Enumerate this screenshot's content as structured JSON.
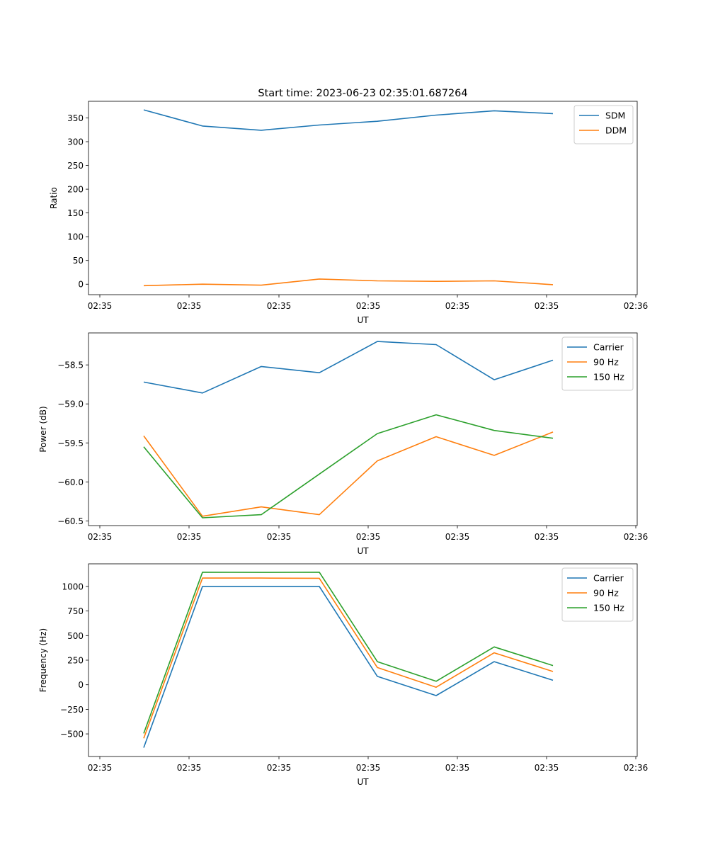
{
  "title": "Start time: 2023-06-23 02:35:01.687264",
  "colors": {
    "blue": "#1f77b4",
    "orange": "#ff7f0e",
    "green": "#2ca02c"
  },
  "chart_data": [
    {
      "type": "line",
      "xlabel": "UT",
      "ylabel": "Ratio",
      "x_tick_labels": [
        "02:35",
        "02:35",
        "02:35",
        "02:35",
        "02:35",
        "02:35",
        "02:36"
      ],
      "ylim": [
        -22,
        385
      ],
      "y_ticks": [
        0,
        50,
        100,
        150,
        200,
        250,
        300,
        350
      ],
      "legend": "top-right",
      "series": [
        {
          "name": "SDM",
          "color": "#1f77b4",
          "values": [
            367,
            333,
            324,
            335,
            343,
            356,
            365,
            359
          ]
        },
        {
          "name": "DDM",
          "color": "#ff7f0e",
          "values": [
            -3,
            0,
            -2,
            11,
            7,
            6,
            7,
            -1
          ]
        }
      ]
    },
    {
      "type": "line",
      "xlabel": "UT",
      "ylabel": "Power (dB)",
      "x_tick_labels": [
        "02:35",
        "02:35",
        "02:35",
        "02:35",
        "02:35",
        "02:35",
        "02:36"
      ],
      "ylim": [
        -60.56,
        -58.09
      ],
      "y_ticks": [
        -60.5,
        -60.0,
        -59.5,
        -59.0,
        -58.5
      ],
      "y_tick_labels": [
        "−60.5",
        "−60.0",
        "−59.5",
        "−59.0",
        "−58.5"
      ],
      "legend": "top-right",
      "series": [
        {
          "name": "Carrier",
          "color": "#1f77b4",
          "values": [
            -58.72,
            -58.86,
            -58.52,
            -58.6,
            -58.2,
            -58.24,
            -58.69,
            -58.44
          ]
        },
        {
          "name": "90 Hz",
          "color": "#ff7f0e",
          "values": [
            -59.41,
            -60.44,
            -60.32,
            -60.42,
            -59.73,
            -59.42,
            -59.66,
            -59.36
          ]
        },
        {
          "name": "150 Hz",
          "color": "#2ca02c",
          "values": [
            -59.55,
            -60.46,
            -60.42,
            -59.9,
            -59.38,
            -59.14,
            -59.34,
            -59.44
          ]
        }
      ]
    },
    {
      "type": "line",
      "xlabel": "UT",
      "ylabel": "Frequency (Hz)",
      "x_tick_labels": [
        "02:35",
        "02:35",
        "02:35",
        "02:35",
        "02:35",
        "02:35",
        "02:36"
      ],
      "ylim": [
        -730,
        1230
      ],
      "y_ticks": [
        -500,
        -250,
        0,
        250,
        500,
        750,
        1000
      ],
      "y_tick_labels": [
        "−500",
        "−250",
        "0",
        "250",
        "500",
        "750",
        "1000"
      ],
      "legend": "top-right",
      "series": [
        {
          "name": "Carrier",
          "color": "#1f77b4",
          "values": [
            -640,
            1000,
            1000,
            1000,
            85,
            -110,
            235,
            45
          ]
        },
        {
          "name": "90 Hz",
          "color": "#ff7f0e",
          "values": [
            -545,
            1085,
            1085,
            1083,
            175,
            -25,
            325,
            135
          ]
        },
        {
          "name": "150 Hz",
          "color": "#2ca02c",
          "values": [
            -495,
            1145,
            1143,
            1145,
            235,
            35,
            385,
            195
          ]
        }
      ]
    }
  ]
}
